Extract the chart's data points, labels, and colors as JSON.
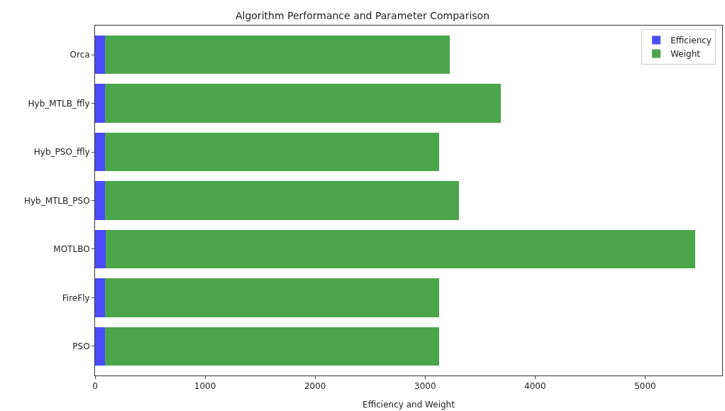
{
  "chart_data": {
    "type": "bar",
    "orientation": "horizontal",
    "stacked": true,
    "title": "Algorithm Performance and Parameter Comparison",
    "xlabel": "Efficiency and Weight",
    "categories": [
      "Orca",
      "Hyb_MTLB_ffly",
      "Hyb_PSO_ffly",
      "Hyb_MTLB_PSO",
      "MOTLBO",
      "FireFly",
      "PSO"
    ],
    "series": [
      {
        "name": "Efficiency",
        "color": "#4b4bff",
        "values": [
          92,
          92,
          92,
          92,
          98,
          92,
          92
        ]
      },
      {
        "name": "Weight",
        "color": "#4ba54b",
        "values": [
          3130,
          3596,
          3034,
          3213,
          5359,
          3034,
          3034
        ]
      }
    ],
    "xlim": [
      0,
      5700
    ],
    "xticks": [
      0,
      1000,
      2000,
      3000,
      4000,
      5000
    ],
    "legend": "top right"
  }
}
